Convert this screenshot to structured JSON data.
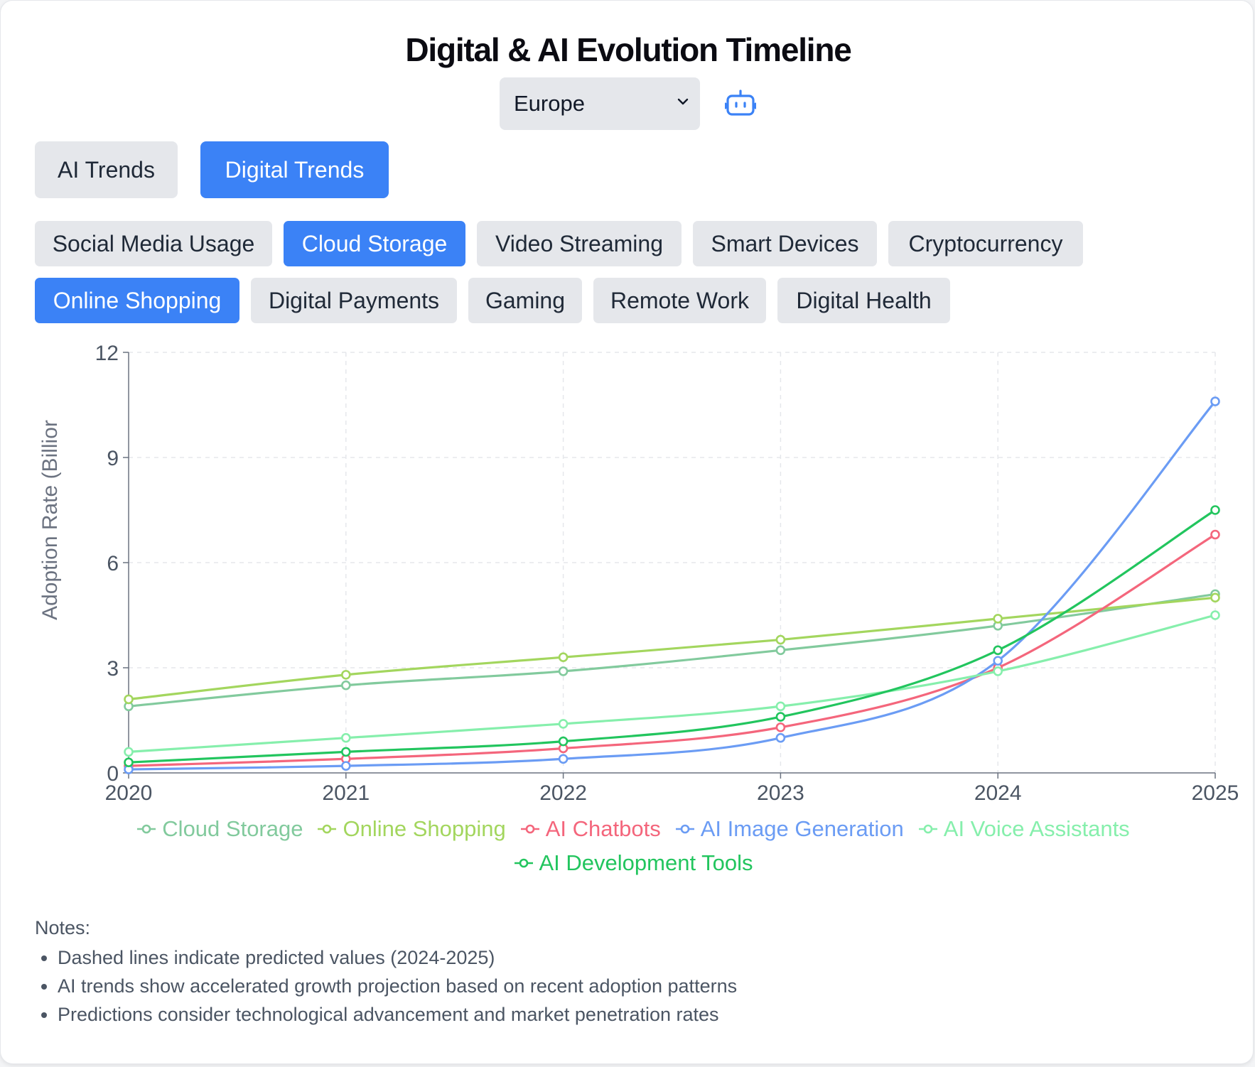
{
  "page": {
    "title": "Digital & AI Evolution Timeline",
    "region_select": {
      "value": "Europe"
    },
    "icons": {
      "assistant": "robot-icon",
      "select": "chevron-down-icon"
    },
    "tabs": [
      {
        "label": "AI Trends",
        "active": false
      },
      {
        "label": "Digital Trends",
        "active": true
      }
    ],
    "categories": [
      {
        "label": "Social Media Usage",
        "active": false
      },
      {
        "label": "Cloud Storage",
        "active": true
      },
      {
        "label": "Video Streaming",
        "active": false
      },
      {
        "label": "Smart Devices",
        "active": false
      },
      {
        "label": "Cryptocurrency",
        "active": false
      },
      {
        "label": "Online Shopping",
        "active": true
      },
      {
        "label": "Digital Payments",
        "active": false
      },
      {
        "label": "Gaming",
        "active": false
      },
      {
        "label": "Remote Work",
        "active": false
      },
      {
        "label": "Digital Health",
        "active": false
      }
    ],
    "notes": {
      "title": "Notes:",
      "items": [
        "Dashed lines indicate predicted values (2024-2025)",
        "AI trends show accelerated growth projection based on recent adoption patterns",
        "Predictions consider technological advancement and market penetration rates"
      ]
    },
    "colors": {
      "accent": "#3b82f6",
      "inactive": "#e5e7eb",
      "axis": "#6b7280",
      "grid": "#e5e7eb"
    }
  },
  "chart_data": {
    "type": "line",
    "title": "",
    "xlabel": "",
    "ylabel": "Adoption Rate (Billior",
    "x": [
      "2020",
      "2021",
      "2022",
      "2023",
      "2024",
      "2025"
    ],
    "ylim": [
      0,
      12
    ],
    "yticks": [
      "0",
      "3",
      "6",
      "9",
      "12"
    ],
    "grid": true,
    "legend_position": "bottom",
    "series": [
      {
        "name": "Cloud Storage",
        "color": "#82ca9d",
        "values": [
          1.9,
          2.5,
          2.9,
          3.5,
          4.2,
          5.1
        ]
      },
      {
        "name": "Online Shopping",
        "color": "#a3d65e",
        "values": [
          2.1,
          2.8,
          3.3,
          3.8,
          4.4,
          5.0
        ]
      },
      {
        "name": "AI Chatbots",
        "color": "#f4667c",
        "values": [
          0.2,
          0.4,
          0.7,
          1.3,
          3.0,
          6.8
        ]
      },
      {
        "name": "AI Image Generation",
        "color": "#6b9cf4",
        "values": [
          0.1,
          0.2,
          0.4,
          1.0,
          3.2,
          10.6
        ]
      },
      {
        "name": "AI Voice Assistants",
        "color": "#86efac",
        "values": [
          0.6,
          1.0,
          1.4,
          1.9,
          2.9,
          4.5
        ]
      },
      {
        "name": "AI Development Tools",
        "color": "#22c55e",
        "values": [
          0.3,
          0.6,
          0.9,
          1.6,
          3.5,
          7.5
        ]
      }
    ]
  }
}
